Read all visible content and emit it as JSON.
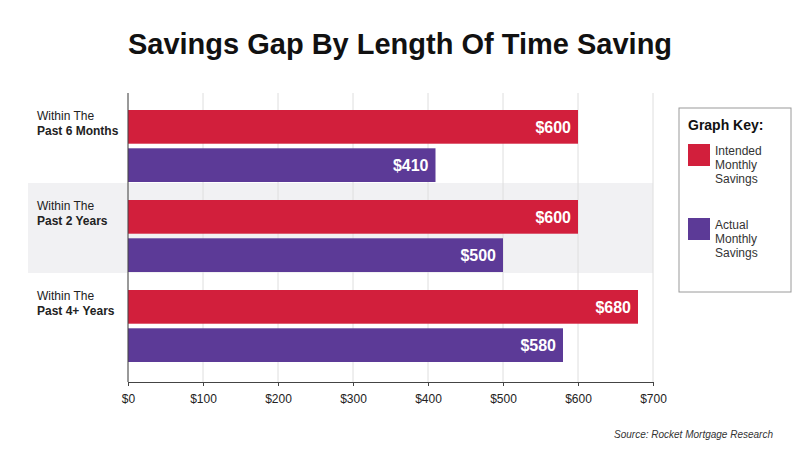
{
  "chart_data": {
    "type": "bar",
    "title": "Savings Gap By Length Of Time Saving",
    "orientation": "horizontal",
    "categories": [
      "Within The\nPast 6 Months",
      "Within The\nPast 2 Years",
      "Within The\nPast 4+ Years"
    ],
    "series": [
      {
        "name": "Intended Monthly Savings",
        "color": "#d21f3c",
        "values": [
          600,
          600,
          680
        ],
        "value_labels": [
          "$600",
          "$600",
          "$680"
        ]
      },
      {
        "name": "Actual Monthly Savings",
        "color": "#5c3a97",
        "values": [
          410,
          500,
          580
        ],
        "value_labels": [
          "$410",
          "$500",
          "$580"
        ]
      }
    ],
    "xlim": [
      0,
      700
    ],
    "xticks": [
      {
        "value": 0,
        "label": "$0"
      },
      {
        "value": 100,
        "label": "$100"
      },
      {
        "value": 200,
        "label": "$200"
      },
      {
        "value": 300,
        "label": "$300"
      },
      {
        "value": 400,
        "label": "$400"
      },
      {
        "value": 500,
        "label": "$500"
      },
      {
        "value": 600,
        "label": "$600"
      },
      {
        "value": 700,
        "label": "$700"
      }
    ],
    "grid": true,
    "data_labels": true,
    "legend": "right",
    "legend_title": "Graph Key:",
    "source": "Source: Rocket Mortgage Research"
  }
}
